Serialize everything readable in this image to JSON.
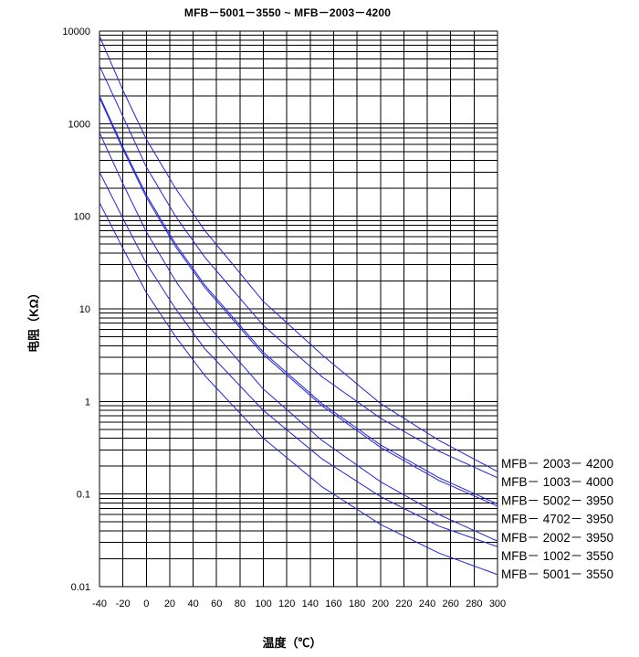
{
  "chart_data": {
    "type": "line",
    "title": "MFB－5001－3550 ~ MFB－2003－4200",
    "xlabel": "温度（℃）",
    "ylabel": "电阻（KΩ）",
    "xlim": [
      -40,
      300
    ],
    "ylim": [
      0.01,
      10000
    ],
    "yscale": "log",
    "grid": true,
    "legend_placement": "right of plot, beside curve ends",
    "x_ticks": [
      "-40",
      "-20",
      "0",
      "20",
      "40",
      "60",
      "80",
      "100",
      "120",
      "140",
      "160",
      "180",
      "200",
      "220",
      "240",
      "260",
      "280",
      "300"
    ],
    "y_ticks": [
      "0.01",
      "0.1",
      "1",
      "10",
      "100",
      "1000",
      "10000"
    ],
    "line_color": "#2222dd",
    "series": [
      {
        "name": "MFB－ 2003－ 4200",
        "x": [
          -40,
          -20,
          0,
          25,
          50,
          100,
          150,
          200,
          250,
          300
        ],
        "y": [
          8800,
          2300,
          680,
          200,
          70,
          12,
          3.2,
          0.95,
          0.38,
          0.175
        ]
      },
      {
        "name": "MFB－ 1003－ 4000",
        "x": [
          -40,
          -20,
          0,
          25,
          50,
          100,
          150,
          200,
          250,
          300
        ],
        "y": [
          4200,
          1200,
          340,
          100,
          36,
          6.6,
          1.85,
          0.66,
          0.29,
          0.15
        ]
      },
      {
        "name": "MFB－ 5002－ 3950",
        "x": [
          -40,
          -20,
          0,
          25,
          50,
          100,
          150,
          200,
          250,
          300
        ],
        "y": [
          2000,
          560,
          170,
          50,
          18,
          3.4,
          0.95,
          0.34,
          0.15,
          0.078
        ]
      },
      {
        "name": "MFB－ 4702－ 3950",
        "x": [
          -40,
          -20,
          0,
          25,
          50,
          100,
          150,
          200,
          250,
          300
        ],
        "y": [
          1900,
          530,
          160,
          47,
          17,
          3.2,
          0.9,
          0.32,
          0.14,
          0.074
        ]
      },
      {
        "name": "MFB－ 2002－ 3950",
        "x": [
          -40,
          -20,
          0,
          25,
          50,
          100,
          150,
          200,
          250,
          300
        ],
        "y": [
          800,
          225,
          68,
          20,
          7.2,
          1.36,
          0.38,
          0.136,
          0.06,
          0.031
        ]
      },
      {
        "name": "MFB－ 1002－ 3550",
        "x": [
          -40,
          -20,
          0,
          25,
          50,
          100,
          150,
          200,
          250,
          300
        ],
        "y": [
          300,
          95,
          31,
          10,
          3.7,
          0.8,
          0.24,
          0.094,
          0.045,
          0.027
        ]
      },
      {
        "name": "MFB－ 5001－ 3550",
        "x": [
          -40,
          -20,
          0,
          25,
          50,
          100,
          150,
          200,
          250,
          300
        ],
        "y": [
          140,
          45,
          15,
          5,
          1.9,
          0.4,
          0.12,
          0.047,
          0.023,
          0.0135
        ]
      }
    ]
  }
}
